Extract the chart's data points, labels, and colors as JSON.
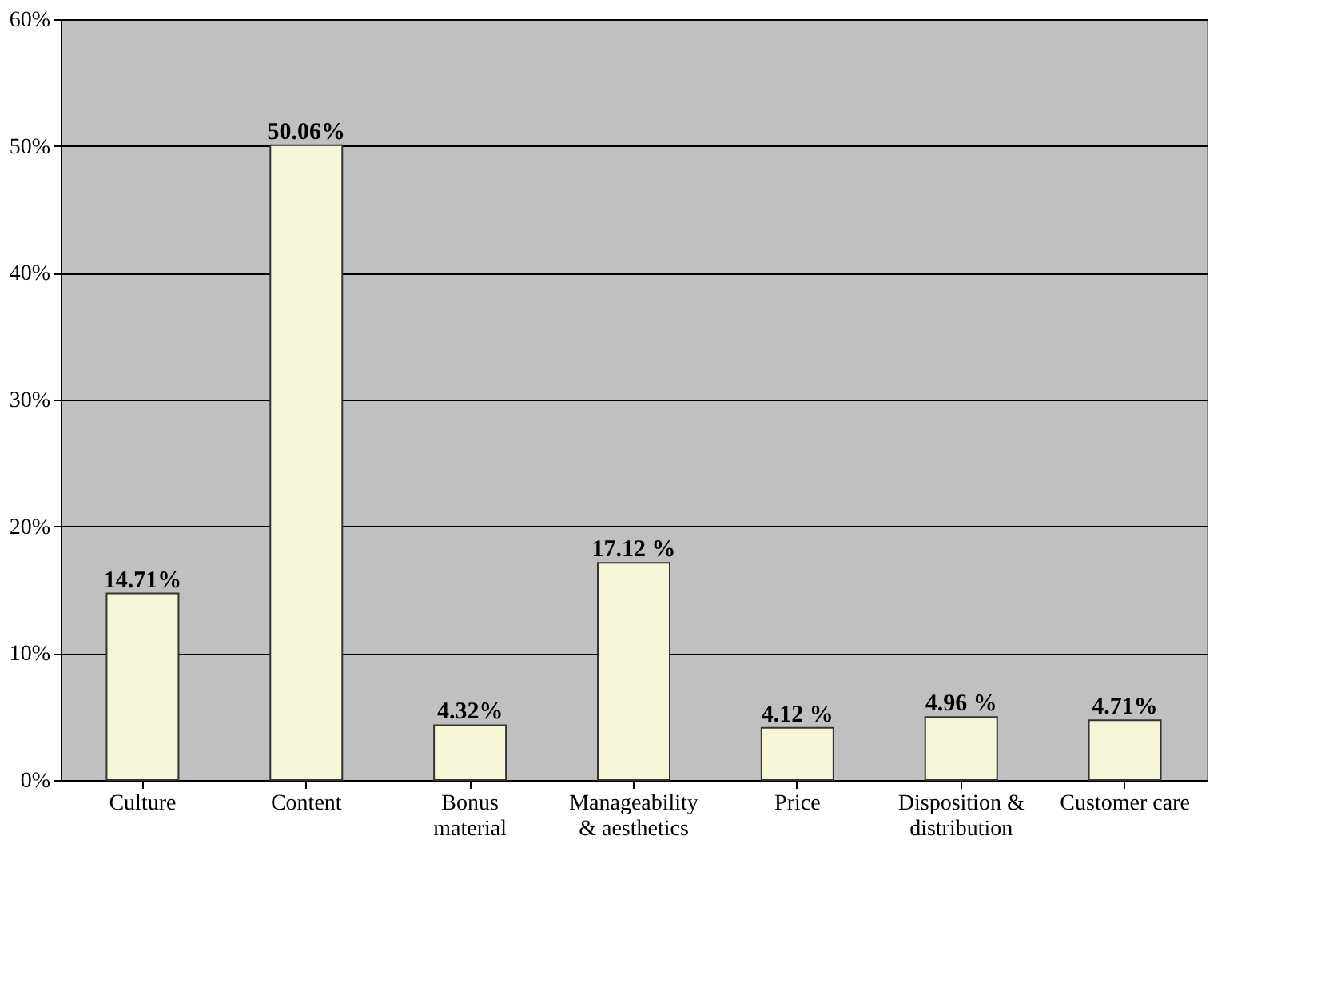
{
  "chart_data": {
    "type": "bar",
    "categories": [
      "Culture",
      "Content",
      "Bonus material",
      "Manageability & aesthetics",
      "Price",
      "Disposition & distribution",
      "Customer care"
    ],
    "values": [
      14.71,
      50.06,
      4.32,
      17.12,
      4.12,
      4.96,
      4.71
    ],
    "value_labels": [
      "14.71%",
      "50.06%",
      "4.32%",
      "17.12 %",
      "4.12 %",
      "4.96 %",
      "4.71%"
    ],
    "color": "#f7f5d8",
    "ylim": [
      0,
      60
    ],
    "yticks": [
      {
        "value": 0,
        "label": "0%"
      },
      {
        "value": 10,
        "label": "10%"
      },
      {
        "value": 20,
        "label": "20%"
      },
      {
        "value": 30,
        "label": "30%"
      },
      {
        "value": 40,
        "label": "40%"
      },
      {
        "value": 50,
        "label": "50%"
      },
      {
        "value": 60,
        "label": "60%"
      }
    ],
    "grid": "y"
  }
}
